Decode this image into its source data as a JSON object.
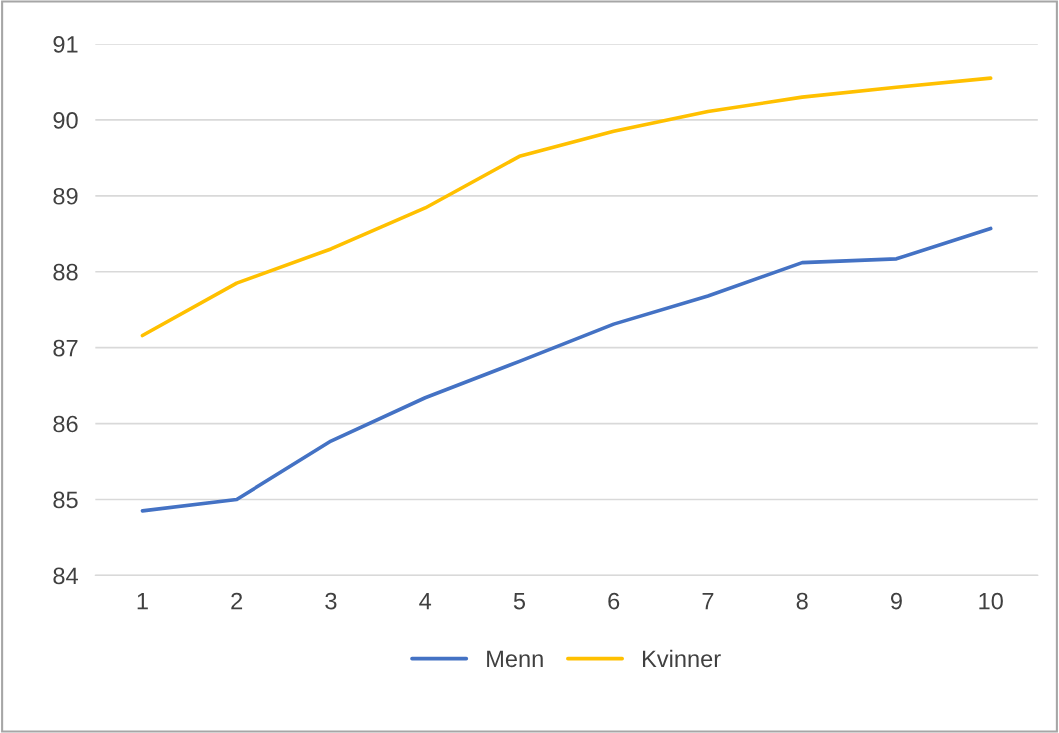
{
  "chart_data": {
    "type": "line",
    "categories": [
      "1",
      "2",
      "3",
      "4",
      "5",
      "6",
      "7",
      "8",
      "9",
      "10"
    ],
    "series": [
      {
        "name": "Menn",
        "color": "#4472c4",
        "values": [
          84.85,
          85.0,
          85.77,
          86.34,
          86.82,
          87.31,
          87.68,
          88.12,
          88.17,
          88.57
        ]
      },
      {
        "name": "Kvinner",
        "color": "#ffc000",
        "values": [
          87.16,
          87.85,
          88.3,
          88.84,
          89.52,
          89.85,
          90.11,
          90.3,
          90.43,
          90.55
        ]
      }
    ],
    "ylim": [
      84,
      91
    ],
    "yticks": [
      84,
      85,
      86,
      87,
      88,
      89,
      90,
      91
    ],
    "grid": "y",
    "legend": "bottom",
    "marker": "none",
    "line_style": "solid"
  }
}
